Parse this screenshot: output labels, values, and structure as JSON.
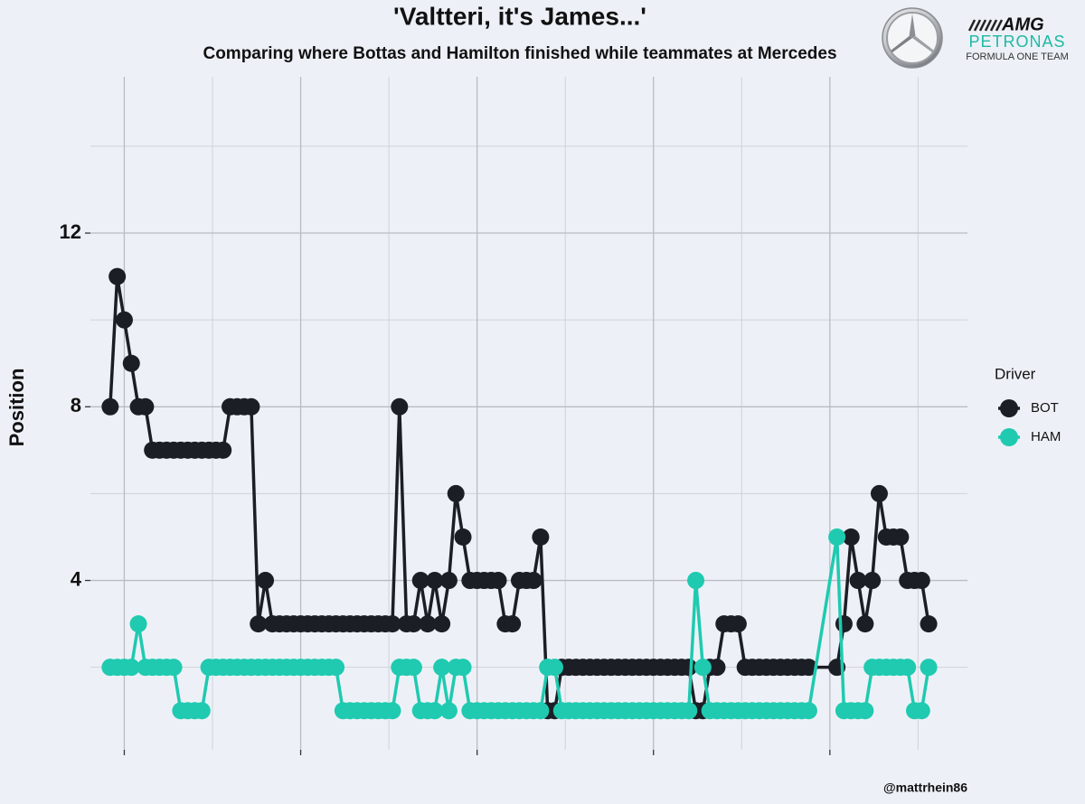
{
  "chart_data": {
    "type": "line",
    "title": "'Valtteri, it's James...'",
    "subtitle": "Comparing where Bottas and Hamilton finished while teammates at Mercedes",
    "y_label": "Position",
    "caption": "@mattrhein86",
    "legend_title": "Driver",
    "legend_position": "right",
    "logo": {
      "brand": "AMG",
      "sponsor": "PETRONAS",
      "team": "FORMULA ONE TEAM"
    },
    "x": [
      23,
      24,
      25,
      26,
      27,
      28,
      29,
      30,
      31,
      32,
      33,
      34,
      35,
      36,
      37,
      38,
      39,
      40,
      41,
      42,
      43,
      44,
      45,
      46,
      47,
      48,
      49,
      50,
      51,
      52,
      53,
      54,
      55,
      56,
      57,
      58,
      59,
      60,
      61,
      62,
      63,
      64,
      65,
      66,
      67,
      68,
      69,
      70,
      71,
      72,
      73,
      74,
      75,
      76,
      77,
      78,
      79,
      80,
      81,
      82,
      83,
      84,
      85,
      86,
      87,
      88,
      89,
      90,
      91,
      92,
      93,
      94,
      95,
      96,
      97,
      98,
      99,
      100,
      101,
      102,
      103,
      104,
      105,
      106,
      107,
      108,
      109,
      110,
      111,
      112,
      113,
      114,
      115,
      116,
      117,
      118,
      119,
      120,
      121,
      122,
      126,
      127,
      128,
      129,
      130,
      131,
      132,
      133,
      134,
      135,
      136,
      137,
      138,
      139
    ],
    "series": [
      {
        "name": "BOT",
        "color": "#1b1f25",
        "values": [
          8,
          11,
          10,
          9,
          8,
          8,
          7,
          7,
          7,
          7,
          7,
          7,
          7,
          7,
          7,
          7,
          7,
          8,
          8,
          8,
          8,
          3,
          4,
          3,
          3,
          3,
          3,
          3,
          3,
          3,
          3,
          3,
          3,
          3,
          3,
          3,
          3,
          3,
          3,
          3,
          3,
          8,
          3,
          3,
          4,
          3,
          4,
          3,
          4,
          6,
          5,
          4,
          4,
          4,
          4,
          4,
          3,
          3,
          4,
          4,
          4,
          5,
          1,
          1,
          2,
          2,
          2,
          2,
          2,
          2,
          2,
          2,
          2,
          2,
          2,
          2,
          2,
          2,
          2,
          2,
          2,
          2,
          2,
          1,
          1,
          2,
          2,
          3,
          3,
          3,
          2,
          2,
          2,
          2,
          2,
          2,
          2,
          2,
          2,
          2,
          2,
          3,
          5,
          4,
          3,
          4,
          6,
          5,
          5,
          5,
          4,
          4,
          4,
          3
        ]
      },
      {
        "name": "HAM",
        "color": "#1fcab0",
        "values": [
          2,
          2,
          2,
          2,
          3,
          2,
          2,
          2,
          2,
          2,
          1,
          1,
          1,
          1,
          2,
          2,
          2,
          2,
          2,
          2,
          2,
          2,
          2,
          2,
          2,
          2,
          2,
          2,
          2,
          2,
          2,
          2,
          2,
          1,
          1,
          1,
          1,
          1,
          1,
          1,
          1,
          2,
          2,
          2,
          1,
          1,
          1,
          2,
          1,
          2,
          2,
          1,
          1,
          1,
          1,
          1,
          1,
          1,
          1,
          1,
          1,
          1,
          2,
          2,
          1,
          1,
          1,
          1,
          1,
          1,
          1,
          1,
          1,
          1,
          1,
          1,
          1,
          1,
          1,
          1,
          1,
          1,
          1,
          4,
          2,
          1,
          1,
          1,
          1,
          1,
          1,
          1,
          1,
          1,
          1,
          1,
          1,
          1,
          1,
          1,
          5,
          1,
          1,
          1,
          1,
          2,
          2,
          2,
          2,
          2,
          2,
          1,
          1,
          2
        ]
      }
    ],
    "xlim": [
      20.2,
      144.5
    ],
    "ylim": [
      0.1,
      15.6
    ],
    "yticks": [
      4,
      8,
      12
    ],
    "ygrid_minor": [
      2,
      6,
      10,
      14
    ],
    "xgrid_major": [
      25,
      50,
      75,
      100,
      125
    ],
    "xgrid_minor": [
      37.5,
      62.5,
      87.5,
      112.5,
      137.5
    ],
    "grid": true
  }
}
